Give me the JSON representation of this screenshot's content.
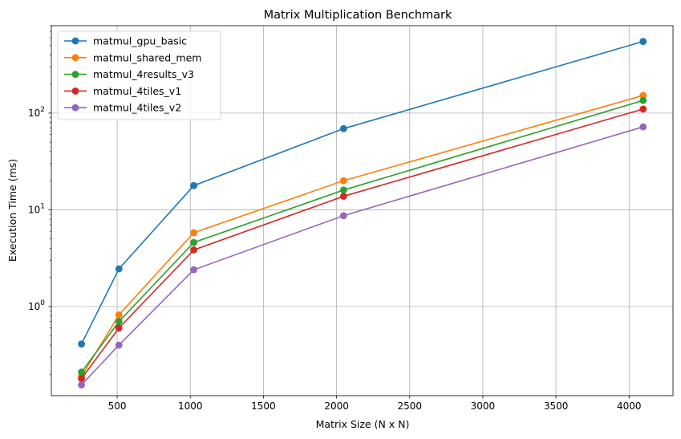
{
  "chart_data": {
    "type": "line",
    "title": "Matrix Multiplication Benchmark",
    "xlabel": "Matrix Size (N x N)",
    "ylabel": "Execution Time (ms)",
    "xlim": [
      50,
      4300
    ],
    "ylim": [
      0.12,
      800
    ],
    "yscale": "log",
    "grid": true,
    "legend_position": "top-left",
    "x": [
      256,
      512,
      1024,
      2048,
      4096
    ],
    "xticks": [
      500,
      1000,
      1500,
      2000,
      2500,
      3000,
      3500,
      4000
    ],
    "yticks": [
      {
        "value": 1,
        "base": "10",
        "exp": "0"
      },
      {
        "value": 10,
        "base": "10",
        "exp": "1"
      },
      {
        "value": 100,
        "base": "10",
        "exp": "2"
      }
    ],
    "series": [
      {
        "name": "matmul_gpu_basic",
        "color": "#1f77b4",
        "values": [
          0.41,
          2.45,
          17.8,
          69.0,
          550.0
        ]
      },
      {
        "name": "matmul_shared_mem",
        "color": "#ff7f0e",
        "values": [
          0.19,
          0.82,
          5.8,
          20.0,
          152.0
        ]
      },
      {
        "name": "matmul_4results_v3",
        "color": "#2ca02c",
        "values": [
          0.21,
          0.7,
          4.6,
          16.0,
          135.0
        ]
      },
      {
        "name": "matmul_4tiles_v1",
        "color": "#d62728",
        "values": [
          0.18,
          0.6,
          3.85,
          13.8,
          110.0
        ]
      },
      {
        "name": "matmul_4tiles_v2",
        "color": "#9467bd",
        "values": [
          0.155,
          0.4,
          2.4,
          8.7,
          72.0
        ]
      }
    ]
  }
}
